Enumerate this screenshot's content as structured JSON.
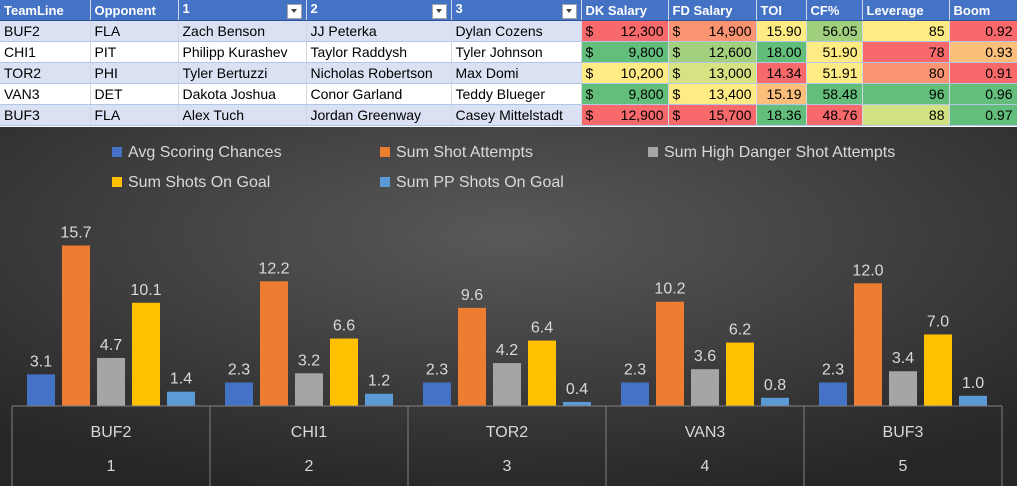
{
  "table": {
    "headers": [
      "TeamLine",
      "Opponent",
      "1",
      "2",
      "3",
      "DK Salary",
      "FD Salary",
      "TOI",
      "CF%",
      "Leverage",
      "Boom"
    ],
    "rows": [
      {
        "team": "BUF2",
        "opp": "FLA",
        "p1": "Zach Benson",
        "p2": "JJ Peterka",
        "p3": "Dylan Cozens",
        "dk": "12,300",
        "fd": "14,900",
        "toi": "15.90",
        "cf": "56.05",
        "lev": "85",
        "boom": "0.92"
      },
      {
        "team": "CHI1",
        "opp": "PIT",
        "p1": "Philipp Kurashev",
        "p2": "Taylor Raddysh",
        "p3": "Tyler Johnson",
        "dk": "9,800",
        "fd": "12,600",
        "toi": "18.00",
        "cf": "51.90",
        "lev": "78",
        "boom": "0.93"
      },
      {
        "team": "TOR2",
        "opp": "PHI",
        "p1": "Tyler Bertuzzi",
        "p2": "Nicholas Robertson",
        "p3": "Max Domi",
        "dk": "10,200",
        "fd": "13,000",
        "toi": "14.34",
        "cf": "51.91",
        "lev": "80",
        "boom": "0.91"
      },
      {
        "team": "VAN3",
        "opp": "DET",
        "p1": "Dakota Joshua",
        "p2": "Conor Garland",
        "p3": "Teddy Blueger",
        "dk": "9,800",
        "fd": "13,400",
        "toi": "15.19",
        "cf": "58.48",
        "lev": "96",
        "boom": "0.96"
      },
      {
        "team": "BUF3",
        "opp": "FLA",
        "p1": "Alex Tuch",
        "p2": "Jordan Greenway",
        "p3": "Casey Mittelstadt",
        "dk": "12,900",
        "fd": "15,700",
        "toi": "18.36",
        "cf": "48.76",
        "lev": "88",
        "boom": "0.97"
      }
    ],
    "currency": "$",
    "colors": {
      "dk": [
        "#f8696b",
        "#63be7b",
        "#ffeb84",
        "#63be7b",
        "#f8696b"
      ],
      "fd": [
        "#fa9473",
        "#a2d07f",
        "#d7e382",
        "#ffeb84",
        "#f8696b"
      ],
      "toi": [
        "#ffeb84",
        "#63be7b",
        "#f8696b",
        "#fcbf7b",
        "#63be7b"
      ],
      "cf": [
        "#a0cf7e",
        "#ffeb84",
        "#ffeb84",
        "#63be7b",
        "#f8696b"
      ],
      "lev": [
        "#ffeb84",
        "#f8696b",
        "#fa9473",
        "#63be7b",
        "#d2e283"
      ],
      "boom": [
        "#f8696b",
        "#fcbf7b",
        "#f8696b",
        "#63be7b",
        "#63be7b"
      ]
    }
  },
  "chart_data": {
    "type": "bar",
    "categories": [
      "BUF2",
      "CHI1",
      "TOR2",
      "VAN3",
      "BUF3"
    ],
    "category_index": [
      "1",
      "2",
      "3",
      "4",
      "5"
    ],
    "series": [
      {
        "name": "Avg Scoring Chances",
        "values": [
          3.1,
          2.3,
          2.3,
          2.3,
          2.3
        ],
        "color": "#4472c4"
      },
      {
        "name": "Sum Shot Attempts",
        "values": [
          15.7,
          12.2,
          9.6,
          10.2,
          12.0
        ],
        "color": "#ed7d31"
      },
      {
        "name": "Sum High Danger Shot Attempts",
        "values": [
          4.7,
          3.2,
          4.2,
          3.6,
          3.4
        ],
        "color": "#a5a5a5"
      },
      {
        "name": "Sum Shots On Goal",
        "values": [
          10.1,
          6.6,
          6.4,
          6.2,
          7.0
        ],
        "color": "#ffc000"
      },
      {
        "name": "Sum PP Shots On Goal",
        "values": [
          1.4,
          1.2,
          0.4,
          0.8,
          1.0
        ],
        "color": "#5b9bd5"
      }
    ],
    "ylim": [
      0,
      18
    ],
    "legend_position": "top",
    "background": "#404040",
    "label_color": "#d9d9d9"
  }
}
